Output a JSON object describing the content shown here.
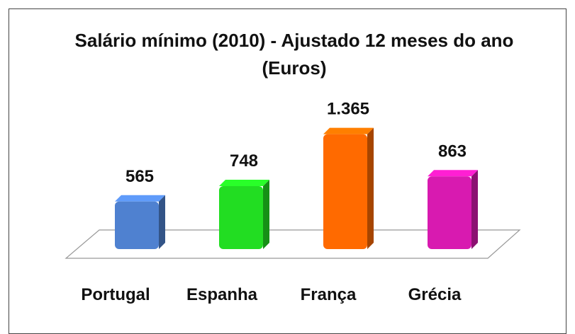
{
  "chart_data": {
    "type": "bar3d",
    "title": "Salário mínimo (2010) - Ajustado 12 meses do ano (Euros)",
    "categories": [
      "Portugal",
      "Espanha",
      "França",
      "Grécia"
    ],
    "values": [
      565,
      748,
      1365,
      863
    ],
    "value_labels": [
      "565",
      "748",
      "1.365",
      "863"
    ],
    "colors": [
      "#4f81d0",
      "#22dd22",
      "#ff6a00",
      "#d81ab0"
    ]
  }
}
